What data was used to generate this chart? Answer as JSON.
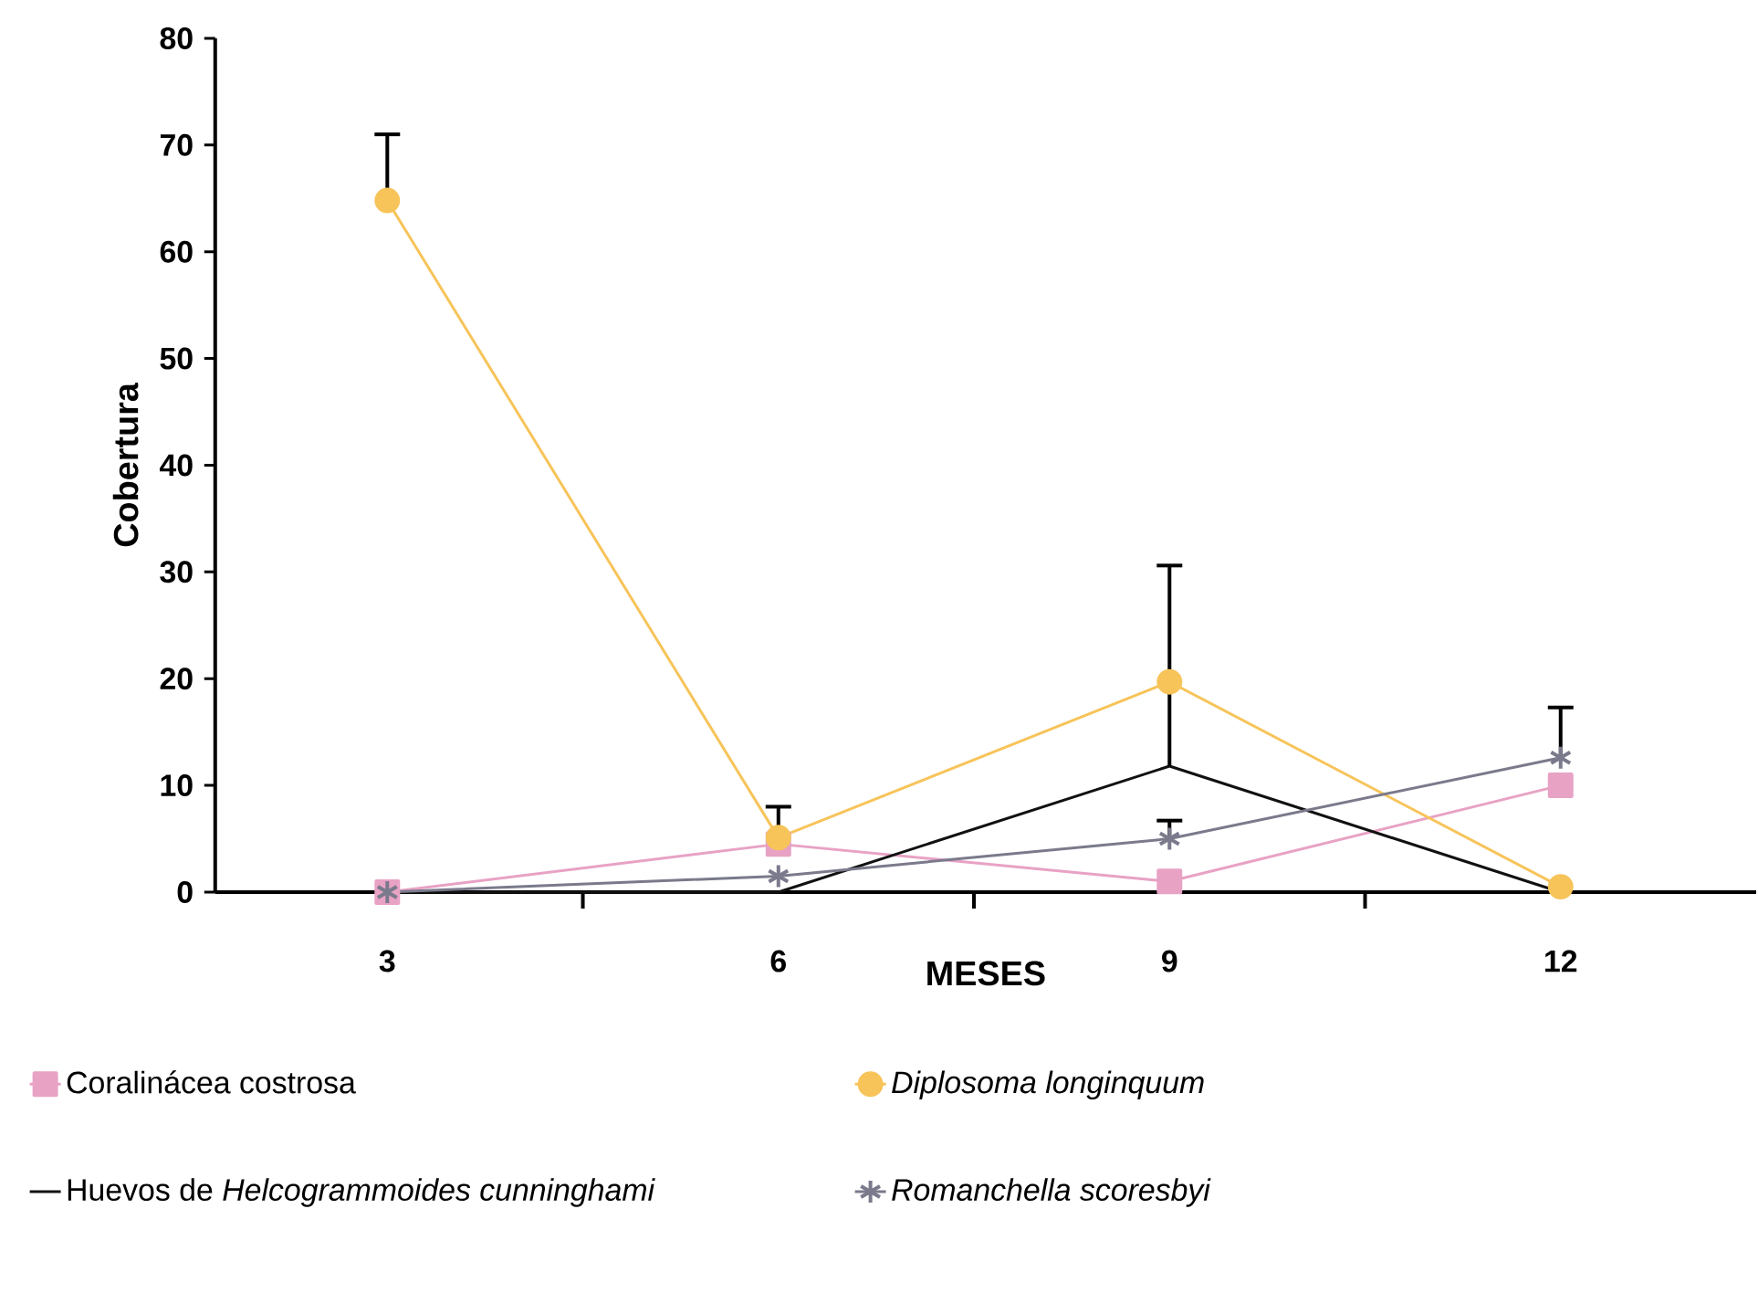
{
  "chart_data": {
    "type": "line",
    "xlabel": "MESES",
    "ylabel": "Cobertura",
    "categories": [
      "3",
      "6",
      "9",
      "12"
    ],
    "ylim": [
      0,
      80
    ],
    "yticks": [
      0,
      10,
      20,
      30,
      40,
      50,
      60,
      70,
      80
    ],
    "legend": "bottom",
    "line_style": "solid",
    "series": [
      {
        "name": "Coralinácea costrosa",
        "color": "#e8a2c4",
        "marker": "square",
        "values": [
          0,
          4.5,
          1,
          10
        ]
      },
      {
        "name": "*Diplosoma longinquum*",
        "color": "#f7c45a",
        "marker": "circle",
        "values": [
          64.8,
          5.1,
          19.7,
          0.5
        ],
        "errors": [
          [
            64.8,
            71
          ],
          [
            5.1,
            8
          ],
          null,
          null
        ]
      },
      {
        "name": "Huevos de *Helcogrammoides cunninghami*",
        "color": "#111111",
        "marker": "none",
        "values": [
          0,
          0,
          11.8,
          0
        ],
        "errors": [
          null,
          null,
          [
            11.8,
            30.6
          ],
          null
        ]
      },
      {
        "name": "*Romanchella scoresbyi*",
        "color": "#7a7a8c",
        "marker": "cross",
        "values": [
          0,
          1.5,
          5,
          12.6
        ],
        "errors": [
          null,
          null,
          [
            5,
            6.7
          ],
          [
            12.6,
            17.3
          ]
        ]
      }
    ]
  }
}
